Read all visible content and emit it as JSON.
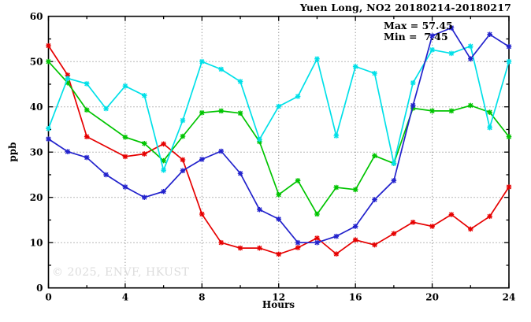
{
  "chart_data": {
    "type": "line",
    "title": "Yuen Long, NO2 20180214-20180217",
    "xlabel": "Hours",
    "ylabel": "ppb",
    "xlim": [
      0,
      24
    ],
    "ylim": [
      0,
      60
    ],
    "x_major_ticks": [
      0,
      4,
      8,
      12,
      16,
      20,
      24
    ],
    "x_minor_step": 2,
    "y_major_ticks": [
      0,
      10,
      20,
      30,
      40,
      50,
      60
    ],
    "y_minor_step": 5,
    "grid": "dotted lines at major ticks, mirrored inward tick marks on all four borders",
    "legend_position": "none",
    "marker": "asterisk",
    "annotation": {
      "max_label": "Max = 57.45",
      "min_label": "Min =  7.45"
    },
    "watermark": "© 2025, ENVF, HKUST",
    "series": [
      {
        "name": "line-red",
        "color": "#e60000",
        "points": [
          [
            0,
            53.5
          ],
          [
            1,
            47.0
          ],
          [
            2,
            33.4
          ],
          [
            4,
            29.0
          ],
          [
            5,
            29.6
          ],
          [
            6,
            31.8
          ],
          [
            7,
            28.3
          ],
          [
            8,
            16.3
          ],
          [
            9,
            10.0
          ],
          [
            10,
            8.8
          ],
          [
            11,
            8.8
          ],
          [
            12,
            7.45
          ],
          [
            13,
            8.9
          ],
          [
            14,
            11.0
          ],
          [
            15,
            7.5
          ],
          [
            16,
            10.6
          ],
          [
            17,
            9.5
          ],
          [
            18,
            12.0
          ],
          [
            19,
            14.5
          ],
          [
            20,
            13.6
          ],
          [
            21,
            16.2
          ],
          [
            22,
            13.0
          ],
          [
            23,
            15.8
          ],
          [
            24,
            22.3
          ]
        ]
      },
      {
        "name": "line-green",
        "color": "#00c400",
        "points": [
          [
            0,
            50.0
          ],
          [
            1,
            45.3
          ],
          [
            2,
            39.3
          ],
          [
            4,
            33.3
          ],
          [
            5,
            31.9
          ],
          [
            6,
            28.1
          ],
          [
            7,
            33.5
          ],
          [
            8,
            38.7
          ],
          [
            9,
            39.1
          ],
          [
            10,
            38.6
          ],
          [
            11,
            32.3
          ],
          [
            12,
            20.6
          ],
          [
            13,
            23.7
          ],
          [
            14,
            16.3
          ],
          [
            15,
            22.2
          ],
          [
            16,
            21.7
          ],
          [
            17,
            29.2
          ],
          [
            18,
            27.5
          ],
          [
            19,
            39.7
          ],
          [
            20,
            39.1
          ],
          [
            21,
            39.1
          ],
          [
            22,
            40.3
          ],
          [
            23,
            38.8
          ],
          [
            24,
            33.4
          ]
        ]
      },
      {
        "name": "line-cyan",
        "color": "#00e0e8",
        "points": [
          [
            0,
            35.2
          ],
          [
            1,
            46.3
          ],
          [
            2,
            45.1
          ],
          [
            3,
            39.6
          ],
          [
            4,
            44.6
          ],
          [
            5,
            42.5
          ],
          [
            6,
            26.0
          ],
          [
            7,
            37.0
          ],
          [
            8,
            50.0
          ],
          [
            9,
            48.3
          ],
          [
            10,
            45.6
          ],
          [
            11,
            32.8
          ],
          [
            12,
            40.1
          ],
          [
            13,
            42.3
          ],
          [
            14,
            50.6
          ],
          [
            15,
            33.6
          ],
          [
            16,
            48.9
          ],
          [
            17,
            47.4
          ],
          [
            18,
            27.5
          ],
          [
            19,
            45.3
          ],
          [
            20,
            52.6
          ],
          [
            21,
            51.8
          ],
          [
            22,
            53.4
          ],
          [
            23,
            35.4
          ],
          [
            24,
            50.0
          ]
        ]
      },
      {
        "name": "line-blue",
        "color": "#2222cc",
        "points": [
          [
            0,
            32.9
          ],
          [
            1,
            30.1
          ],
          [
            2,
            28.8
          ],
          [
            3,
            25.0
          ],
          [
            4,
            22.3
          ],
          [
            5,
            20.0
          ],
          [
            6,
            21.3
          ],
          [
            7,
            25.9
          ],
          [
            8,
            28.4
          ],
          [
            9,
            30.2
          ],
          [
            10,
            25.3
          ],
          [
            11,
            17.3
          ],
          [
            12,
            15.2
          ],
          [
            13,
            10.0
          ],
          [
            14,
            10.0
          ],
          [
            15,
            11.4
          ],
          [
            16,
            13.6
          ],
          [
            17,
            19.5
          ],
          [
            18,
            23.7
          ],
          [
            19,
            40.3
          ],
          [
            20,
            55.7
          ],
          [
            21,
            57.45
          ],
          [
            22,
            50.6
          ],
          [
            23,
            56.0
          ],
          [
            24,
            53.3
          ]
        ]
      }
    ]
  }
}
